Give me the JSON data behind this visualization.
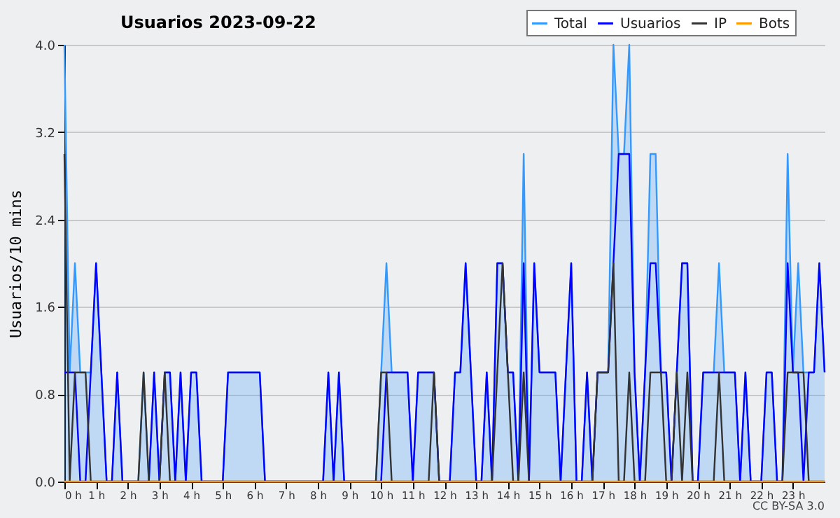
{
  "chart_data": {
    "type": "line",
    "title": "Usuarios  2023-09-22",
    "ylabel": "Usuarios/10 mins",
    "annotations": [
      "CC BY-SA 3.0"
    ],
    "x": [
      0,
      0.167,
      0.333,
      0.5,
      0.667,
      0.833,
      1,
      1.167,
      1.333,
      1.5,
      1.667,
      1.833,
      2,
      2.167,
      2.333,
      2.5,
      2.667,
      2.833,
      3,
      3.167,
      3.333,
      3.5,
      3.667,
      3.833,
      4,
      4.167,
      4.333,
      4.5,
      4.667,
      4.833,
      5,
      5.167,
      5.333,
      5.5,
      5.667,
      5.833,
      6,
      6.167,
      6.333,
      6.5,
      6.667,
      6.833,
      7,
      7.167,
      7.333,
      7.5,
      7.667,
      7.833,
      8,
      8.167,
      8.333,
      8.5,
      8.667,
      8.833,
      9,
      9.167,
      9.333,
      9.5,
      9.667,
      9.833,
      10,
      10.167,
      10.333,
      10.5,
      10.667,
      10.833,
      11,
      11.167,
      11.333,
      11.5,
      11.667,
      11.833,
      12,
      12.167,
      12.333,
      12.5,
      12.667,
      12.833,
      13,
      13.167,
      13.333,
      13.5,
      13.667,
      13.833,
      14,
      14.167,
      14.333,
      14.5,
      14.667,
      14.833,
      15,
      15.167,
      15.333,
      15.5,
      15.667,
      15.833,
      16,
      16.167,
      16.333,
      16.5,
      16.667,
      16.833,
      17,
      17.167,
      17.333,
      17.5,
      17.667,
      17.833,
      18,
      18.167,
      18.333,
      18.5,
      18.667,
      18.833,
      19,
      19.167,
      19.333,
      19.5,
      19.667,
      19.833,
      20,
      20.167,
      20.333,
      20.5,
      20.667,
      20.833,
      21,
      21.167,
      21.333,
      21.5,
      21.667,
      21.833,
      22,
      22.167,
      22.333,
      22.5,
      22.667,
      22.833,
      23,
      23.167,
      23.333,
      23.5,
      23.667,
      23.833,
      24
    ],
    "series": [
      {
        "name": "Total",
        "type": "area",
        "color": "#3399ff",
        "values": [
          4,
          1,
          2,
          1,
          1,
          1,
          2,
          1,
          0,
          0,
          1,
          0,
          0,
          0,
          0,
          1,
          0,
          1,
          0,
          1,
          1,
          0,
          1,
          0,
          1,
          1,
          0,
          0,
          0,
          0,
          0,
          1,
          1,
          1,
          1,
          1,
          1,
          1,
          0,
          0,
          0,
          0,
          0,
          0,
          0,
          0,
          0,
          0,
          0,
          0,
          1,
          0,
          1,
          0,
          0,
          0,
          0,
          0,
          0,
          0,
          1,
          2,
          1,
          1,
          1,
          1,
          0,
          1,
          1,
          1,
          1,
          0,
          0,
          0,
          1,
          1,
          2,
          1,
          0,
          0,
          1,
          0,
          2,
          2,
          1,
          1,
          0,
          3,
          0,
          2,
          1,
          1,
          1,
          1,
          0,
          1,
          2,
          0,
          0,
          1,
          0,
          1,
          1,
          1,
          4,
          3,
          3,
          4,
          1,
          0,
          1,
          3,
          3,
          1,
          1,
          0,
          1,
          2,
          2,
          0,
          0,
          1,
          1,
          1,
          2,
          1,
          1,
          1,
          0,
          1,
          0,
          0,
          0,
          1,
          1,
          0,
          0,
          3,
          1,
          2,
          1,
          1,
          1,
          2,
          1
        ]
      },
      {
        "name": "Usuarios",
        "type": "line",
        "color": "#0000ff",
        "values": [
          1,
          1,
          1,
          0,
          0,
          1,
          2,
          1,
          0,
          0,
          1,
          0,
          0,
          0,
          0,
          0,
          0,
          1,
          0,
          1,
          1,
          0,
          1,
          0,
          1,
          1,
          0,
          0,
          0,
          0,
          0,
          1,
          1,
          1,
          1,
          1,
          1,
          1,
          0,
          0,
          0,
          0,
          0,
          0,
          0,
          0,
          0,
          0,
          0,
          0,
          1,
          0,
          1,
          0,
          0,
          0,
          0,
          0,
          0,
          0,
          0,
          1,
          1,
          1,
          1,
          1,
          0,
          1,
          1,
          1,
          1,
          0,
          0,
          0,
          1,
          1,
          2,
          1,
          0,
          0,
          1,
          0,
          2,
          2,
          1,
          1,
          0,
          2,
          0,
          2,
          1,
          1,
          1,
          1,
          0,
          1,
          2,
          0,
          0,
          1,
          0,
          1,
          1,
          1,
          2,
          3,
          3,
          3,
          1,
          0,
          1,
          2,
          2,
          1,
          1,
          0,
          1,
          2,
          2,
          0,
          0,
          1,
          1,
          1,
          1,
          1,
          1,
          1,
          0,
          1,
          0,
          0,
          0,
          1,
          1,
          0,
          0,
          2,
          1,
          1,
          0,
          1,
          1,
          2,
          1
        ]
      },
      {
        "name": "IP",
        "type": "line",
        "color": "#333333",
        "values": [
          3,
          0,
          1,
          1,
          1,
          0,
          0,
          0,
          0,
          0,
          0,
          0,
          0,
          0,
          0,
          1,
          0,
          0,
          0,
          1,
          0,
          0,
          0,
          0,
          0,
          0,
          0,
          0,
          0,
          0,
          0,
          0,
          0,
          0,
          0,
          0,
          0,
          0,
          0,
          0,
          0,
          0,
          0,
          0,
          0,
          0,
          0,
          0,
          0,
          0,
          0,
          0,
          0,
          0,
          0,
          0,
          0,
          0,
          0,
          0,
          1,
          1,
          0,
          0,
          0,
          0,
          0,
          0,
          0,
          0,
          1,
          0,
          0,
          0,
          0,
          0,
          0,
          0,
          0,
          0,
          0,
          0,
          1,
          2,
          1,
          0,
          0,
          1,
          0,
          0,
          0,
          0,
          0,
          0,
          0,
          0,
          0,
          0,
          0,
          0,
          0,
          1,
          1,
          1,
          2,
          0,
          0,
          1,
          0,
          0,
          0,
          1,
          1,
          1,
          0,
          0,
          1,
          0,
          1,
          0,
          0,
          0,
          0,
          0,
          1,
          0,
          0,
          0,
          0,
          0,
          0,
          0,
          0,
          0,
          0,
          0,
          0,
          1,
          1,
          1,
          1,
          0,
          0,
          0,
          0
        ]
      },
      {
        "name": "Bots",
        "type": "line",
        "color": "#ff9900",
        "values": [
          0,
          0,
          0,
          0,
          0,
          0,
          0,
          0,
          0,
          0,
          0,
          0,
          0,
          0,
          0,
          0,
          0,
          0,
          0,
          0,
          0,
          0,
          0,
          0,
          0,
          0,
          0,
          0,
          0,
          0,
          0,
          0,
          0,
          0,
          0,
          0,
          0,
          0,
          0,
          0,
          0,
          0,
          0,
          0,
          0,
          0,
          0,
          0,
          0,
          0,
          0,
          0,
          0,
          0,
          0,
          0,
          0,
          0,
          0,
          0,
          0,
          0,
          0,
          0,
          0,
          0,
          0,
          0,
          0,
          0,
          0,
          0,
          0,
          0,
          0,
          0,
          0,
          0,
          0,
          0,
          0,
          0,
          0,
          0,
          0,
          0,
          0,
          0,
          0,
          0,
          0,
          0,
          0,
          0,
          0,
          0,
          0,
          0,
          0,
          0,
          0,
          0,
          0,
          0,
          0,
          0,
          0,
          0,
          0,
          0,
          0,
          0,
          0,
          0,
          0,
          0,
          0,
          0,
          0,
          0,
          0,
          0,
          0,
          0,
          0,
          0,
          0,
          0,
          0,
          0,
          0,
          0,
          0,
          0,
          0,
          0,
          0,
          0,
          0,
          0,
          0,
          0,
          0,
          0,
          0
        ]
      }
    ],
    "xlim": [
      0,
      24
    ],
    "xticks": [
      {
        "value": 0,
        "label": "0 h"
      },
      {
        "value": 1,
        "label": "1 h"
      },
      {
        "value": 2,
        "label": "2 h"
      },
      {
        "value": 3,
        "label": "3 h"
      },
      {
        "value": 4,
        "label": "4 h"
      },
      {
        "value": 5,
        "label": "5 h"
      },
      {
        "value": 6,
        "label": "6 h"
      },
      {
        "value": 7,
        "label": "7 h"
      },
      {
        "value": 8,
        "label": "8 h"
      },
      {
        "value": 9,
        "label": "9 h"
      },
      {
        "value": 10,
        "label": "10 h"
      },
      {
        "value": 11,
        "label": "11 h"
      },
      {
        "value": 12,
        "label": "12 h"
      },
      {
        "value": 13,
        "label": "13 h"
      },
      {
        "value": 14,
        "label": "14 h"
      },
      {
        "value": 15,
        "label": "15 h"
      },
      {
        "value": 16,
        "label": "16 h"
      },
      {
        "value": 17,
        "label": "17 h"
      },
      {
        "value": 18,
        "label": "18 h"
      },
      {
        "value": 19,
        "label": "19 h"
      },
      {
        "value": 20,
        "label": "20 h"
      },
      {
        "value": 21,
        "label": "21 h"
      },
      {
        "value": 22,
        "label": "22 h"
      },
      {
        "value": 23,
        "label": "23 h"
      }
    ],
    "ylim": [
      0,
      4
    ],
    "yticks": [
      {
        "value": 0,
        "label": "0.0"
      },
      0.8,
      1.6,
      2.4,
      3.2,
      {
        "value": 4,
        "label": "4.0"
      }
    ],
    "grid": "y",
    "legend": "top right",
    "marker": "none",
    "line_style": "solid"
  }
}
